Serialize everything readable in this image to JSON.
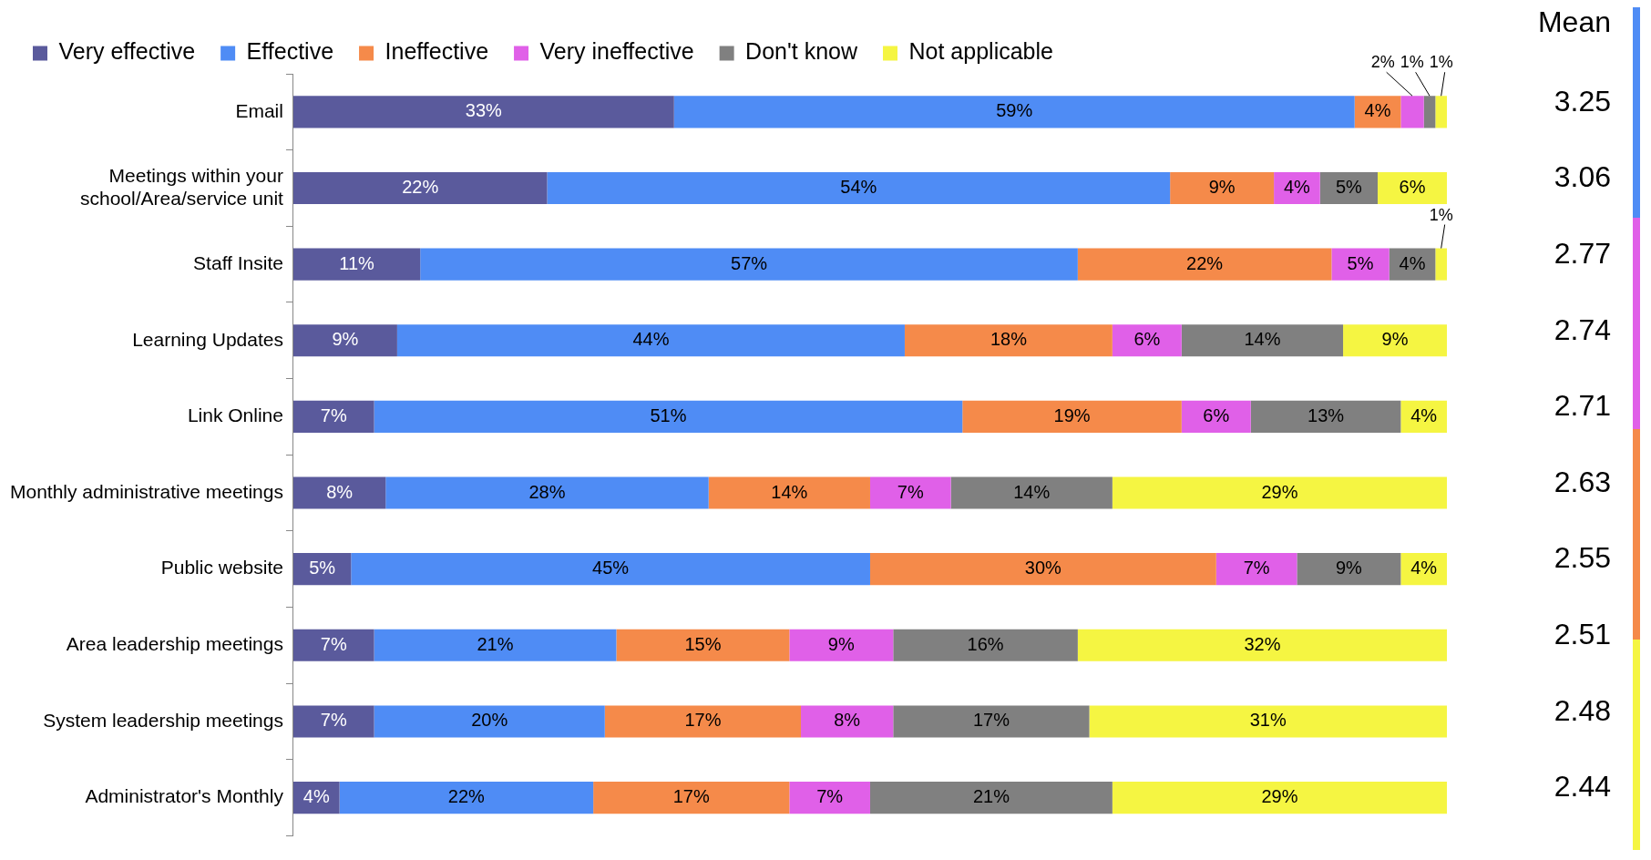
{
  "chart_data": {
    "type": "bar",
    "orientation": "horizontal",
    "stacked": true,
    "legend": "top",
    "tick_labels": "y",
    "xlim": [
      0,
      100
    ],
    "categories": [
      "Email",
      "Meetings within your school/Area/service unit",
      "Staff Insite",
      "Learning Updates",
      "Link Online",
      "Monthly administrative meetings",
      "Public website",
      "Area leadership meetings",
      "System leadership meetings",
      "Administrator's Monthly"
    ],
    "series": [
      {
        "name": "Very effective",
        "color": "#5a5a9c",
        "values": [
          33,
          22,
          11,
          9,
          7,
          8,
          5,
          7,
          7,
          4
        ],
        "value_labels": [
          "33%",
          "22%",
          "11%",
          "9%",
          "7%",
          "8%",
          "5%",
          "7%",
          "7%",
          "4%"
        ]
      },
      {
        "name": "Effective",
        "color": "#4f8cf5",
        "values": [
          59,
          54,
          57,
          44,
          51,
          28,
          45,
          21,
          20,
          22
        ],
        "value_labels": [
          "59%",
          "54%",
          "57%",
          "44%",
          "51%",
          "28%",
          "45%",
          "21%",
          "20%",
          "22%"
        ]
      },
      {
        "name": "Ineffective",
        "color": "#f58a4a",
        "values": [
          4,
          9,
          22,
          18,
          19,
          14,
          30,
          15,
          17,
          17
        ],
        "value_labels": [
          "4%",
          "9%",
          "22%",
          "18%",
          "19%",
          "14%",
          "30%",
          "15%",
          "17%",
          "17%"
        ]
      },
      {
        "name": "Very ineffective",
        "color": "#e060e8",
        "values": [
          2,
          4,
          5,
          6,
          6,
          7,
          7,
          9,
          8,
          7
        ],
        "value_labels": [
          "2%",
          "4%",
          "5%",
          "6%",
          "6%",
          "7%",
          "7%",
          "9%",
          "8%",
          "7%"
        ]
      },
      {
        "name": "Don't know",
        "color": "#808080",
        "values": [
          1,
          5,
          4,
          14,
          13,
          14,
          9,
          16,
          17,
          21
        ],
        "value_labels": [
          "1%",
          "5%",
          "4%",
          "14%",
          "13%",
          "14%",
          "9%",
          "16%",
          "17%",
          "21%"
        ]
      },
      {
        "name": "Not applicable",
        "color": "#f5f542",
        "values": [
          1,
          6,
          1,
          9,
          4,
          29,
          4,
          32,
          31,
          29
        ],
        "value_labels": [
          "1%",
          "6%",
          "1%",
          "9%",
          "4%",
          "29%",
          "4%",
          "32%",
          "31%",
          "29%"
        ]
      }
    ],
    "annotations": [
      "Mean",
      "3.25",
      "3.06",
      "2.77",
      "2.74",
      "2.71",
      "2.63",
      "2.55",
      "2.51",
      "2.48",
      "2.44"
    ]
  }
}
